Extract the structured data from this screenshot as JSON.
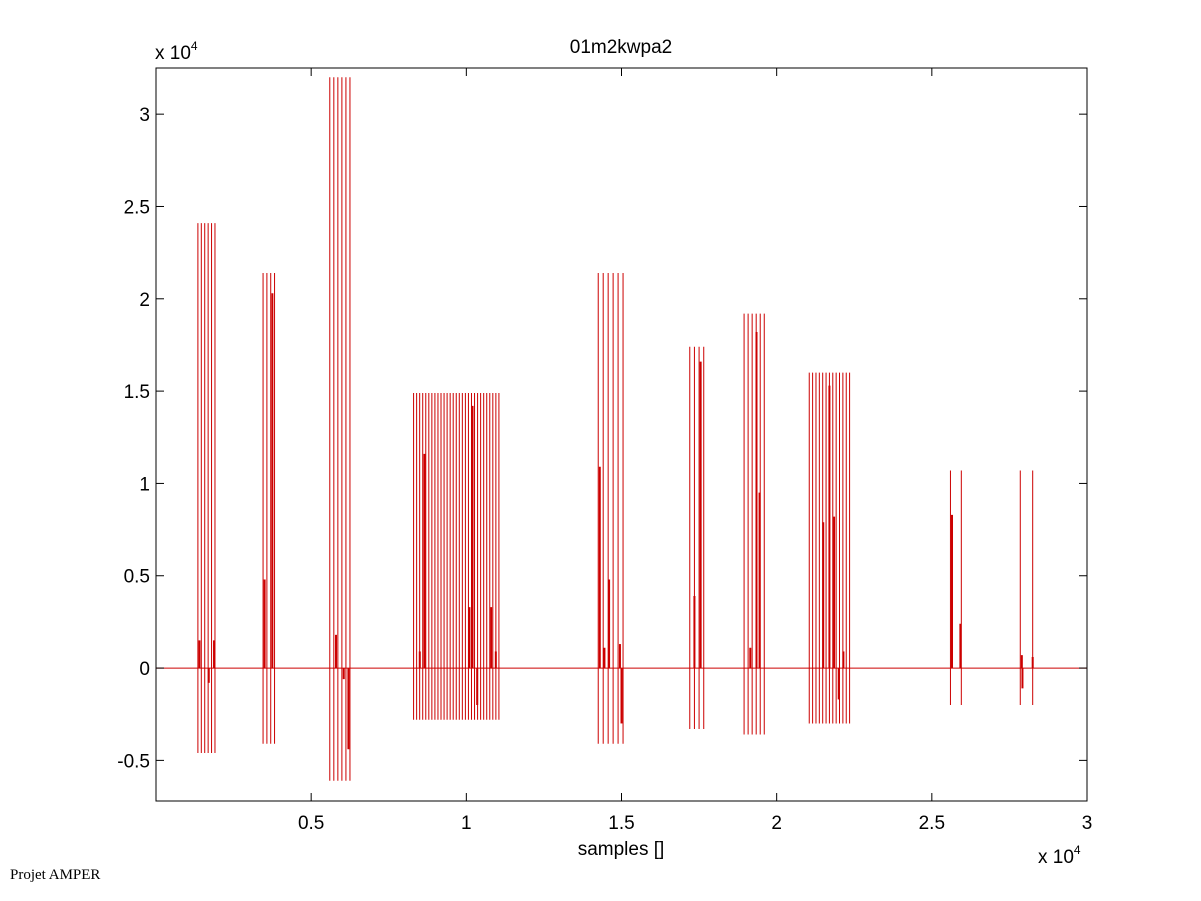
{
  "chart_data": {
    "type": "line",
    "title": "01m2kwpa2",
    "xlabel": "samples []",
    "ylabel": "",
    "x_exponent_label": "x 10",
    "x_exponent_power": "4",
    "y_exponent_label": "x 10",
    "y_exponent_power": "4",
    "xlim": [
      0,
      30000
    ],
    "ylim": [
      -7200,
      32500
    ],
    "x_ticks": [
      5000,
      10000,
      15000,
      20000,
      25000,
      30000
    ],
    "x_tick_labels": [
      "0.5",
      "1",
      "1.5",
      "2",
      "2.5",
      "3"
    ],
    "y_ticks": [
      -5000,
      0,
      5000,
      10000,
      15000,
      20000,
      25000,
      30000
    ],
    "y_tick_labels": [
      "-0.5",
      "0",
      "0.5",
      "1",
      "1.5",
      "2",
      "2.5",
      "3"
    ],
    "grid": false,
    "line_color": "#cc0000",
    "baseline": 0,
    "bursts": [
      {
        "x_start": 1350,
        "x_end": 1900,
        "count": 6,
        "max": 24100,
        "min": -4600
      },
      {
        "x_start": 3450,
        "x_end": 3820,
        "count": 4,
        "max": 21400,
        "min": -4100
      },
      {
        "x_start": 5600,
        "x_end": 6250,
        "count": 6,
        "max": 32000,
        "min": -6100
      },
      {
        "x_start": 8300,
        "x_end": 11050,
        "count": 29,
        "max": 14900,
        "min": -2800
      },
      {
        "x_start": 14250,
        "x_end": 15050,
        "count": 6,
        "max": 21400,
        "min": -4100
      },
      {
        "x_start": 17200,
        "x_end": 17650,
        "count": 4,
        "max": 17400,
        "min": -3300
      },
      {
        "x_start": 18950,
        "x_end": 19600,
        "count": 6,
        "max": 19200,
        "min": -3600
      },
      {
        "x_start": 21050,
        "x_end": 22350,
        "count": 13,
        "max": 16000,
        "min": -3000
      },
      {
        "x_start": 25600,
        "x_end": 25950,
        "count": 2,
        "max": 10700,
        "min": -2000
      },
      {
        "x_start": 27850,
        "x_end": 28250,
        "count": 2,
        "max": 10700,
        "min": -2000
      }
    ],
    "inner_spikes": [
      {
        "x": 1400,
        "value": 1500
      },
      {
        "x": 1700,
        "value": -800
      },
      {
        "x": 1870,
        "value": 1500
      },
      {
        "x": 3500,
        "value": 4800
      },
      {
        "x": 3750,
        "value": 20300
      },
      {
        "x": 5800,
        "value": 1800
      },
      {
        "x": 6050,
        "value": -600
      },
      {
        "x": 6200,
        "value": -4400
      },
      {
        "x": 8650,
        "value": 11600
      },
      {
        "x": 8500,
        "value": 900
      },
      {
        "x": 10100,
        "value": 3300
      },
      {
        "x": 10200,
        "value": 14200
      },
      {
        "x": 10350,
        "value": -2000
      },
      {
        "x": 10800,
        "value": 3300
      },
      {
        "x": 10950,
        "value": 900
      },
      {
        "x": 14300,
        "value": 10900
      },
      {
        "x": 14450,
        "value": 1100
      },
      {
        "x": 14600,
        "value": 4800
      },
      {
        "x": 14950,
        "value": 1300
      },
      {
        "x": 15000,
        "value": -3000
      },
      {
        "x": 17350,
        "value": 3900
      },
      {
        "x": 17550,
        "value": 16600
      },
      {
        "x": 19150,
        "value": 1100
      },
      {
        "x": 19350,
        "value": 18200
      },
      {
        "x": 19450,
        "value": 9500
      },
      {
        "x": 21500,
        "value": 7900
      },
      {
        "x": 21700,
        "value": 15300
      },
      {
        "x": 21850,
        "value": 8200
      },
      {
        "x": 22000,
        "value": -1700
      },
      {
        "x": 22150,
        "value": 900
      },
      {
        "x": 25650,
        "value": 8300
      },
      {
        "x": 25920,
        "value": 2400
      },
      {
        "x": 27900,
        "value": 700
      },
      {
        "x": 27920,
        "value": -1100
      },
      {
        "x": 28250,
        "value": 600
      }
    ]
  },
  "footer": {
    "label": "Projet AMPER"
  }
}
